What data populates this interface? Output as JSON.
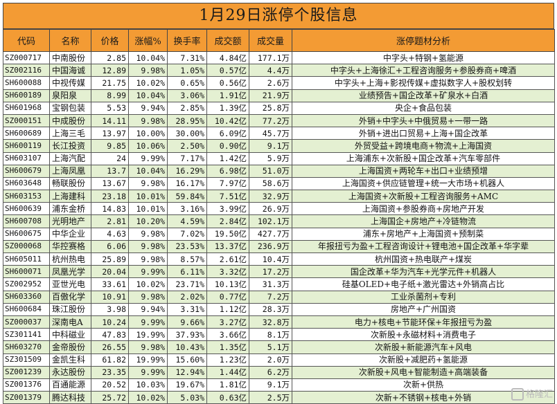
{
  "title": "1月29日涨停个股信息",
  "headers": [
    "代码",
    "名称",
    "价格",
    "涨幅%",
    "换手率",
    "成交额",
    "成交量",
    "涨停题材分析"
  ],
  "rows": [
    [
      "SZ000717",
      "中南股份",
      "2.85",
      "10.04%",
      "7.31%",
      "4.84亿",
      "177.1万",
      "中字头+特钢+氢能源"
    ],
    [
      "SZ002116",
      "中国海诚",
      "12.89",
      "9.98%",
      "1.05%",
      "0.57亿",
      "4.4万",
      "中字头+上海徐汇+工程咨询服务+参股券商+啤酒"
    ],
    [
      "SH600088",
      "中视传媒",
      "21.75",
      "10.02%",
      "0.65%",
      "0.56亿",
      "2.6万",
      "中字头+上海+影视传媒+虚拟数字人+股权划转"
    ],
    [
      "SH600189",
      "泉阳泉",
      "8.99",
      "10.04%",
      "3.06%",
      "1.91亿",
      "21.9万",
      "业绩预告+国企改革+矿泉水+白酒"
    ],
    [
      "SH601968",
      "宝钢包装",
      "5.53",
      "9.94%",
      "2.85%",
      "1.39亿",
      "25.8万",
      "央企+食品包装"
    ],
    [
      "SZ000151",
      "中成股份",
      "14.11",
      "9.98%",
      "28.95%",
      "10.42亿",
      "77.2万",
      "外销+中字头+中俄贸易+一带一路"
    ],
    [
      "SH600689",
      "上海三毛",
      "13.97",
      "10.00%",
      "30.00%",
      "6.09亿",
      "45.7万",
      "外销+进出口贸易+上海+国企改革"
    ],
    [
      "SH600119",
      "长江投资",
      "9.85",
      "10.06%",
      "2.50%",
      "0.90亿",
      "9.1万",
      "外贸受益+跨境电商+物流+上海国资"
    ],
    [
      "SH603107",
      "上海汽配",
      "24",
      "9.99%",
      "7.17%",
      "1.42亿",
      "5.9万",
      "上海浦东+次新股+国企改革+汽车零部件"
    ],
    [
      "SH600679",
      "上海凤凰",
      "13.7",
      "10.04%",
      "16.29%",
      "6.98亿",
      "51.0万",
      "上海国资+两轮车+出口+业绩预增"
    ],
    [
      "SH603648",
      "畅联股份",
      "13.67",
      "9.98%",
      "16.17%",
      "7.97亿",
      "58.6万",
      "上海国资+供应链管理+统一大市场+机器人"
    ],
    [
      "SH603153",
      "上海建科",
      "23.18",
      "10.01%",
      "59.84%",
      "7.51亿",
      "32.9万",
      "上海国资+次新股+工程咨询服务+AMC"
    ],
    [
      "SH600639",
      "浦东金桥",
      "14.83",
      "10.01%",
      "3.16%",
      "3.99亿",
      "26.9万",
      "上海国资+参股券商+房地产开发"
    ],
    [
      "SH600708",
      "光明地产",
      "2.81",
      "10.20%",
      "4.59%",
      "2.84亿",
      "102.1万",
      "上海国企+房地产+冷链物流"
    ],
    [
      "SH600675",
      "中华企业",
      "4.63",
      "9.98%",
      "7.02%",
      "19.50亿",
      "427.7万",
      "浦东+房地产+上海国资+预制菜"
    ],
    [
      "SZ000068",
      "华控赛格",
      "6.06",
      "9.98%",
      "23.53%",
      "13.37亿",
      "236.9万",
      "年报扭亏为盈+工程咨询设计+锂电池+国企改革+华字辈"
    ],
    [
      "SH605011",
      "杭州热电",
      "25.89",
      "9.98%",
      "8.57%",
      "2.61亿",
      "10.4万",
      "杭州国资+热电联产+煤炭"
    ],
    [
      "SH600071",
      "凤凰光学",
      "20.04",
      "9.99%",
      "6.11%",
      "3.32亿",
      "17.2万",
      "国企改革+华为汽车+光学元件+机器人"
    ],
    [
      "SZ002952",
      "亚世光电",
      "33.61",
      "10.02%",
      "23.71%",
      "10.13亿",
      "31.3万",
      "硅基OLED+电子纸+激光雷达+外销高占比"
    ],
    [
      "SH603360",
      "百傲化学",
      "10.91",
      "9.98%",
      "2.02%",
      "0.77亿",
      "7.2万",
      "工业杀菌剂+专利"
    ],
    [
      "SH600684",
      "珠江股份",
      "3.98",
      "9.94%",
      "3.31%",
      "1.12亿",
      "28.3万",
      "房地产+广州国资"
    ],
    [
      "SZ000037",
      "深南电A",
      "10.24",
      "9.99%",
      "9.66%",
      "3.27亿",
      "32.8万",
      "电力+核电+节能环保+年报扭亏为盈"
    ],
    [
      "SZ301141",
      "中科磁业",
      "47.83",
      "19.99%",
      "37.93%",
      "3.66亿",
      "8.1万",
      "次新股+永磁材料+消费电子"
    ],
    [
      "SH603270",
      "金帝股份",
      "26.55",
      "9.98%",
      "10.43%",
      "1.35亿",
      "5.1万",
      "次新股+新能源汽车+风电"
    ],
    [
      "SZ301509",
      "金凯生科",
      "61.82",
      "19.99%",
      "15.60%",
      "1.23亿",
      "2.0万",
      "次新股+减肥药+氢能源"
    ],
    [
      "SZ001239",
      "永达股份",
      "23.35",
      "9.99%",
      "12.94%",
      "1.44亿",
      "6.2万",
      "次新股+风电+智能制造+高端装备"
    ],
    [
      "SZ001376",
      "百通能源",
      "20.52",
      "10.03%",
      "19.67%",
      "1.81亿",
      "9.1万",
      "次新+供热"
    ],
    [
      "SZ001379",
      "腾达科技",
      "25.72",
      "10.02%",
      "5.03%",
      "0.63亿",
      "2.5万",
      "次新+不锈钢+核电+外销"
    ]
  ],
  "watermark": "格隆汇"
}
